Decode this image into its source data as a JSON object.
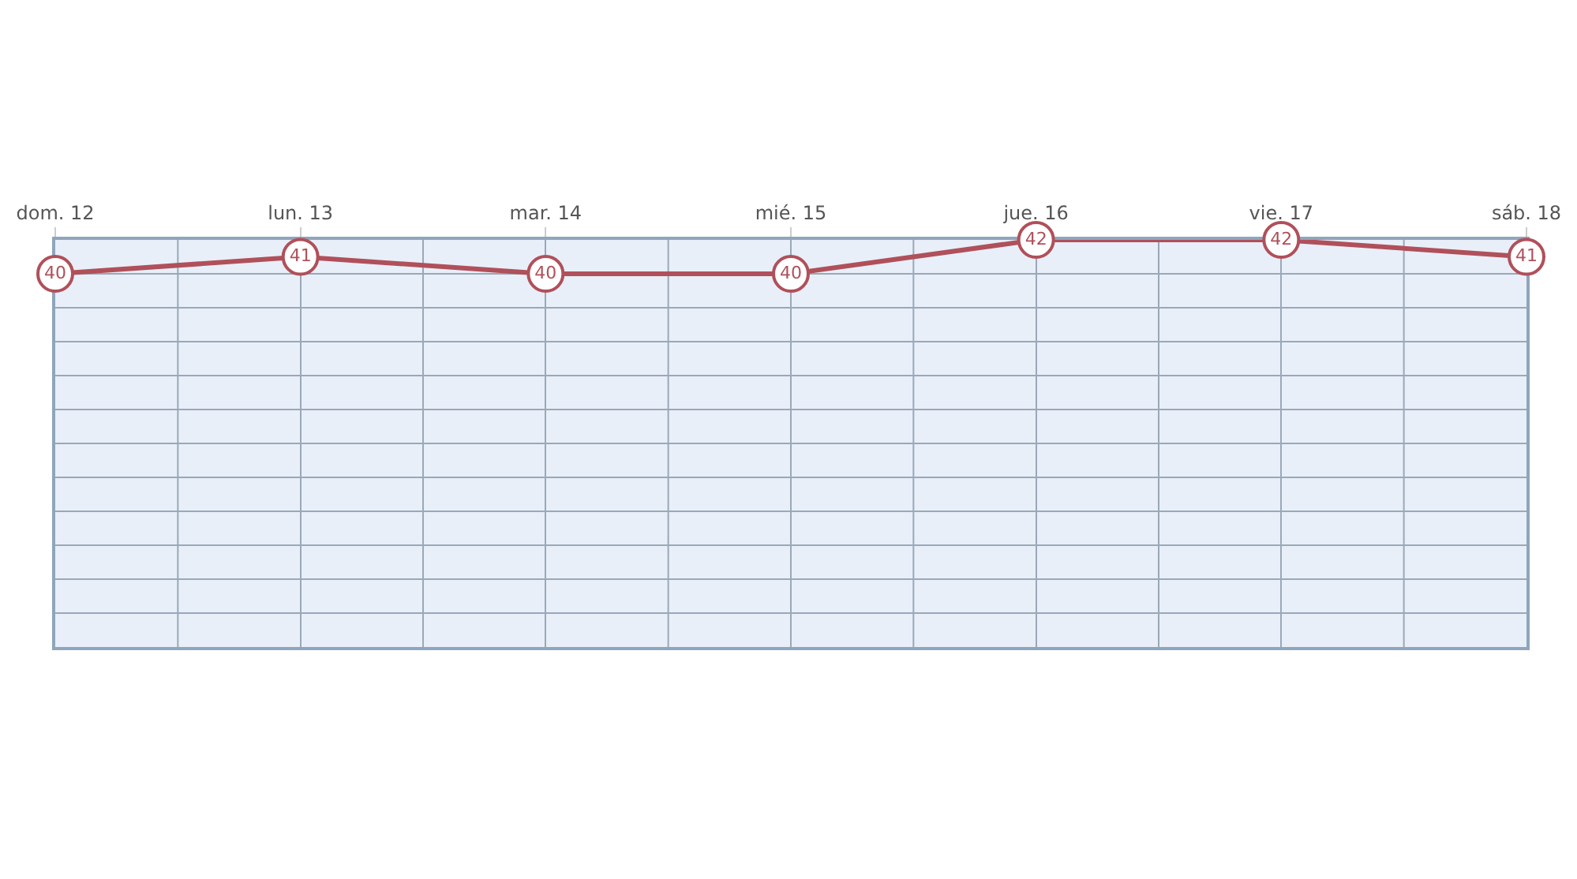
{
  "chart_data": {
    "type": "line",
    "categories": [
      "dom. 12",
      "lun. 13",
      "mar. 14",
      "mié. 15",
      "jue. 16",
      "vie. 17",
      "sáb. 18"
    ],
    "series": [
      {
        "color": "#b0505a",
        "values": [
          40,
          41,
          40,
          40,
          42,
          42,
          41
        ]
      }
    ],
    "ylim": [
      18,
      42
    ],
    "yticks": [
      {
        "value": 18,
        "label": null
      },
      {
        "value": 20,
        "label": null
      },
      {
        "value": 22,
        "label": null
      },
      {
        "value": 24,
        "label": null
      },
      {
        "value": 26,
        "label": null
      },
      {
        "value": 28,
        "label": null
      },
      {
        "value": 30,
        "label": null
      },
      {
        "value": 32,
        "label": null
      },
      {
        "value": 34,
        "label": null
      },
      {
        "value": 36,
        "label": null
      },
      {
        "value": 38,
        "label": null
      },
      {
        "value": 40,
        "label": null
      },
      {
        "value": 42,
        "label": null
      }
    ],
    "tick_labels": "x",
    "grid": true,
    "data_labels": true,
    "marker": "circle",
    "line_style": "solid"
  }
}
